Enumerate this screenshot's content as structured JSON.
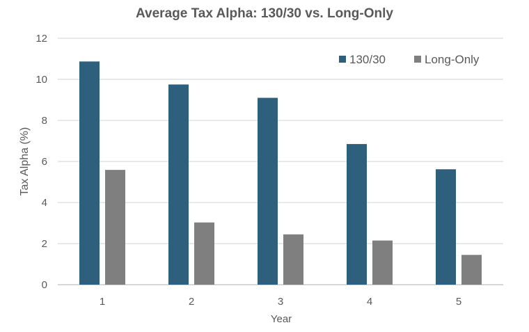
{
  "chart_data": {
    "type": "bar",
    "title": "Average Tax Alpha: 130/30 vs. Long-Only",
    "xlabel": "Year",
    "ylabel": "Tax Alpha (%)",
    "categories": [
      "1",
      "2",
      "3",
      "4",
      "5"
    ],
    "series": [
      {
        "name": "130/30",
        "color": "#2e5f7d",
        "values": [
          10.87,
          9.75,
          9.1,
          6.85,
          5.62
        ]
      },
      {
        "name": "Long-Only",
        "color": "#7f7f7f",
        "values": [
          5.59,
          3.03,
          2.45,
          2.15,
          1.45
        ]
      }
    ],
    "ylim": [
      0,
      12
    ],
    "yticks": [
      "0",
      "2",
      "4",
      "6",
      "8",
      "10",
      "12"
    ],
    "grid": true,
    "legend": "top-right"
  }
}
